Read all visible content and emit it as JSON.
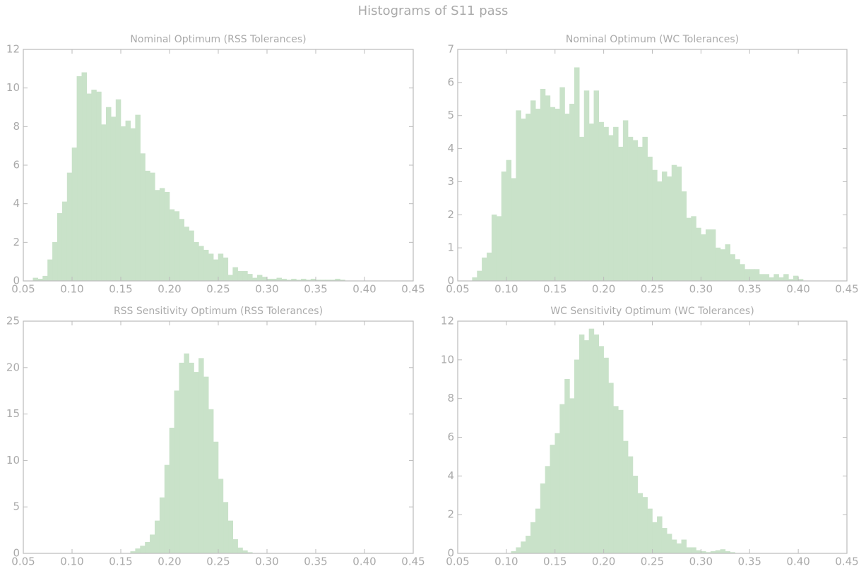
{
  "title": "Histograms of S11 pass",
  "chart_data": [
    {
      "type": "histogram",
      "title": "Nominal Optimum (RSS Tolerances)",
      "color": "#c9e2c9",
      "bins": [
        0.06,
        0.065,
        0.07,
        0.075,
        0.08,
        0.085,
        0.09,
        0.095,
        0.1,
        0.105,
        0.11,
        0.115,
        0.12,
        0.125,
        0.13,
        0.135,
        0.14,
        0.145,
        0.15,
        0.155,
        0.16,
        0.165,
        0.17,
        0.175,
        0.18,
        0.185,
        0.19,
        0.195,
        0.2,
        0.205,
        0.21,
        0.215,
        0.22,
        0.225,
        0.23,
        0.235,
        0.24,
        0.245,
        0.25,
        0.255,
        0.26,
        0.265,
        0.27,
        0.275,
        0.28,
        0.285,
        0.29,
        0.295,
        0.3,
        0.305,
        0.31,
        0.315,
        0.32,
        0.325,
        0.33,
        0.335,
        0.34,
        0.345,
        0.35,
        0.355,
        0.36,
        0.365,
        0.37,
        0.375,
        0.38
      ],
      "values": [
        0.15,
        0.1,
        0.25,
        1.1,
        2.0,
        3.5,
        4.1,
        5.6,
        6.9,
        10.6,
        10.8,
        9.7,
        9.9,
        9.8,
        8.1,
        9.0,
        8.5,
        9.4,
        8.0,
        8.3,
        7.9,
        8.6,
        6.6,
        5.7,
        5.6,
        4.7,
        4.8,
        4.6,
        3.7,
        3.6,
        3.2,
        2.8,
        2.6,
        2.0,
        1.8,
        1.6,
        1.4,
        1.1,
        1.4,
        1.2,
        0.3,
        0.7,
        0.5,
        0.5,
        0.35,
        0.15,
        0.3,
        0.2,
        0.1,
        0.1,
        0.15,
        0.1,
        0.05,
        0.1,
        0.05,
        0.1,
        0.05,
        0.1,
        0.05,
        0.05,
        0.05,
        0.05,
        0.1,
        0.05
      ],
      "xlim": [
        0.05,
        0.45
      ],
      "xticks": [
        0.05,
        {
          "value": 0.1,
          "label": "0.10"
        },
        0.15,
        {
          "value": 0.2,
          "label": "0.20"
        },
        0.25,
        {
          "value": 0.3,
          "label": "0.30"
        },
        0.35,
        {
          "value": 0.4,
          "label": "0.40"
        },
        0.45
      ],
      "ylim": [
        0,
        12
      ],
      "yticks": [
        0,
        2,
        4,
        6,
        8,
        10,
        12
      ]
    },
    {
      "type": "histogram",
      "title": "Nominal Optimum (WC Tolerances)",
      "color": "#c9e2c9",
      "bins": [
        0.065,
        0.07,
        0.075,
        0.08,
        0.085,
        0.09,
        0.095,
        0.1,
        0.105,
        0.11,
        0.115,
        0.12,
        0.125,
        0.13,
        0.135,
        0.14,
        0.145,
        0.15,
        0.155,
        0.16,
        0.165,
        0.17,
        0.175,
        0.18,
        0.185,
        0.19,
        0.195,
        0.2,
        0.205,
        0.21,
        0.215,
        0.22,
        0.225,
        0.23,
        0.235,
        0.24,
        0.245,
        0.25,
        0.255,
        0.26,
        0.265,
        0.27,
        0.275,
        0.28,
        0.285,
        0.29,
        0.295,
        0.3,
        0.305,
        0.31,
        0.315,
        0.32,
        0.325,
        0.33,
        0.335,
        0.34,
        0.345,
        0.35,
        0.355,
        0.36,
        0.365,
        0.37,
        0.375,
        0.38,
        0.385,
        0.39,
        0.395,
        0.4,
        0.405
      ],
      "values": [
        0.1,
        0.3,
        0.7,
        0.85,
        2.0,
        1.95,
        3.3,
        3.65,
        3.1,
        5.15,
        4.9,
        5.05,
        5.45,
        5.2,
        5.8,
        5.6,
        5.25,
        5.2,
        5.85,
        5.05,
        5.35,
        6.45,
        4.35,
        5.75,
        4.75,
        5.75,
        4.8,
        4.65,
        4.4,
        4.65,
        4.05,
        4.85,
        4.35,
        4.25,
        4.05,
        4.35,
        3.75,
        3.35,
        3.0,
        3.3,
        3.15,
        3.5,
        3.45,
        2.7,
        1.9,
        1.95,
        1.6,
        1.4,
        1.55,
        1.55,
        1.0,
        0.95,
        1.1,
        0.8,
        0.65,
        0.5,
        0.35,
        0.35,
        0.35,
        0.2,
        0.2,
        0.1,
        0.2,
        0.1,
        0.2,
        0.05,
        0.15,
        0.05
      ],
      "xlim": [
        0.05,
        0.45
      ],
      "xticks": [
        0.05,
        {
          "value": 0.1,
          "label": "0.10"
        },
        0.15,
        {
          "value": 0.2,
          "label": "0.20"
        },
        0.25,
        {
          "value": 0.3,
          "label": "0.30"
        },
        0.35,
        {
          "value": 0.4,
          "label": "0.40"
        },
        0.45
      ],
      "ylim": [
        0,
        7
      ],
      "yticks": [
        0,
        1,
        2,
        3,
        4,
        5,
        6,
        7
      ]
    },
    {
      "type": "histogram",
      "title": "RSS Sensitivity Optimum (RSS Tolerances)",
      "color": "#c9e2c9",
      "bins": [
        0.16,
        0.165,
        0.17,
        0.175,
        0.18,
        0.185,
        0.19,
        0.195,
        0.2,
        0.205,
        0.21,
        0.215,
        0.22,
        0.225,
        0.23,
        0.235,
        0.24,
        0.245,
        0.25,
        0.255,
        0.26,
        0.265,
        0.27,
        0.275,
        0.28,
        0.285
      ],
      "values": [
        0.2,
        0.5,
        0.8,
        1.2,
        2.0,
        3.5,
        6.0,
        9.5,
        13.5,
        17.5,
        20.5,
        21.5,
        20.5,
        19.5,
        21.0,
        19.0,
        15.5,
        12.0,
        8.0,
        5.5,
        3.5,
        1.5,
        0.6,
        0.3,
        0.1
      ],
      "xlim": [
        0.05,
        0.45
      ],
      "xticks": [
        0.05,
        {
          "value": 0.1,
          "label": "0.10"
        },
        0.15,
        {
          "value": 0.2,
          "label": "0.20"
        },
        0.25,
        {
          "value": 0.3,
          "label": "0.30"
        },
        0.35,
        {
          "value": 0.4,
          "label": "0.40"
        },
        0.45
      ],
      "ylim": [
        0,
        25
      ],
      "yticks": [
        0,
        5,
        10,
        15,
        20,
        25
      ]
    },
    {
      "type": "histogram",
      "title": "WC Sensitivity Optimum (WC Tolerances)",
      "color": "#c9e2c9",
      "bins": [
        0.105,
        0.11,
        0.115,
        0.12,
        0.125,
        0.13,
        0.135,
        0.14,
        0.145,
        0.15,
        0.155,
        0.16,
        0.165,
        0.17,
        0.175,
        0.18,
        0.185,
        0.19,
        0.195,
        0.2,
        0.205,
        0.21,
        0.215,
        0.22,
        0.225,
        0.23,
        0.235,
        0.24,
        0.245,
        0.25,
        0.255,
        0.26,
        0.265,
        0.27,
        0.275,
        0.28,
        0.285,
        0.29,
        0.295,
        0.3,
        0.305,
        0.31,
        0.315,
        0.32,
        0.325,
        0.33,
        0.335
      ],
      "values": [
        0.1,
        0.3,
        0.6,
        0.9,
        1.6,
        2.3,
        3.6,
        4.5,
        5.6,
        6.2,
        7.7,
        9.0,
        8.0,
        10.0,
        11.3,
        11.0,
        11.6,
        11.3,
        10.7,
        10.1,
        8.8,
        7.6,
        7.4,
        5.8,
        5.0,
        4.0,
        3.1,
        2.9,
        2.3,
        1.6,
        1.9,
        1.3,
        1.0,
        0.7,
        0.5,
        0.7,
        0.3,
        0.3,
        0.15,
        0.1,
        0.05,
        0.1,
        0.15,
        0.2,
        0.1,
        0.05
      ],
      "xlim": [
        0.05,
        0.45
      ],
      "xticks": [
        0.05,
        {
          "value": 0.1,
          "label": "0.10"
        },
        0.15,
        {
          "value": 0.2,
          "label": "0.20"
        },
        0.25,
        {
          "value": 0.3,
          "label": "0.30"
        },
        0.35,
        {
          "value": 0.4,
          "label": "0.40"
        },
        0.45
      ],
      "ylim": [
        0,
        12
      ],
      "yticks": [
        0,
        2,
        4,
        6,
        8,
        10,
        12
      ]
    }
  ]
}
